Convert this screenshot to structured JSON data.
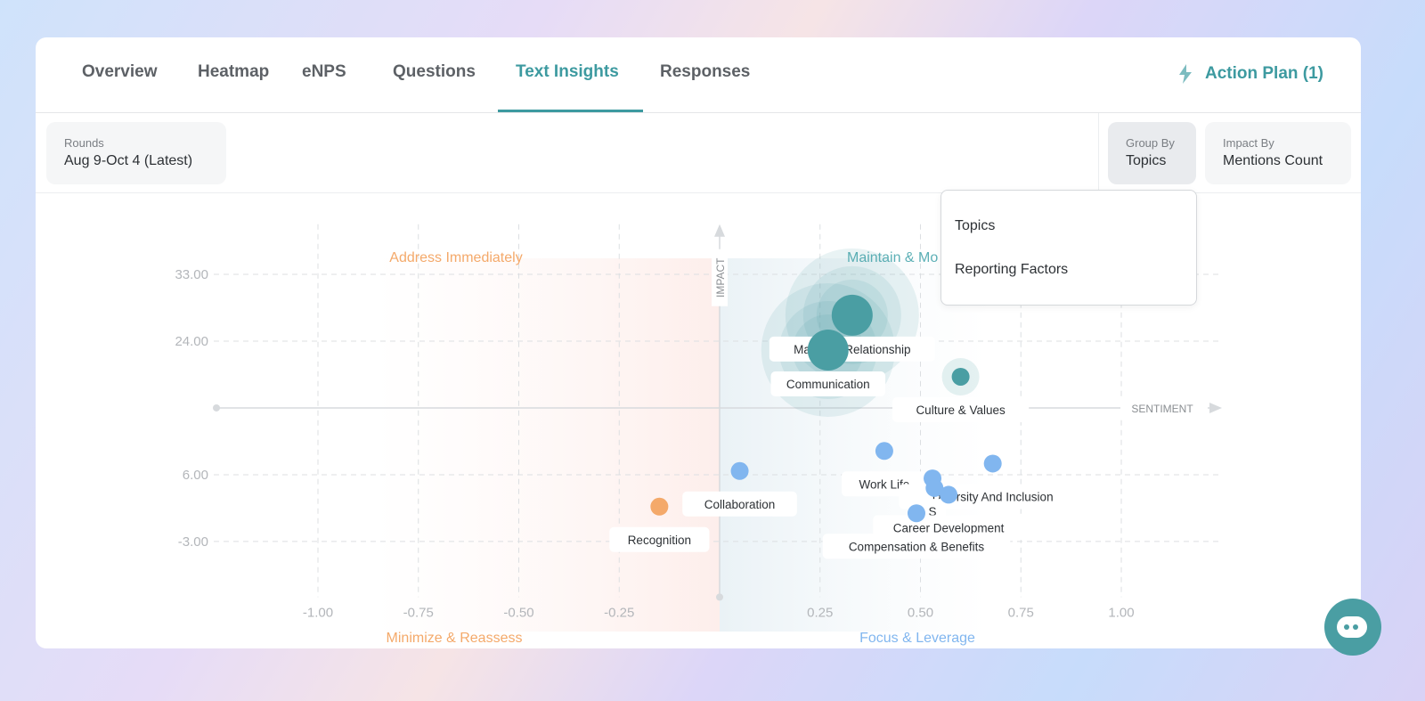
{
  "tabs": [
    {
      "label": "Overview"
    },
    {
      "label": "Heatmap"
    },
    {
      "label": "eNPS"
    },
    {
      "label": "Questions"
    },
    {
      "label": "Text Insights",
      "active": true
    },
    {
      "label": "Responses"
    }
  ],
  "action_plan": {
    "label": "Action Plan (1)",
    "icon": "lightning-icon"
  },
  "filters": {
    "rounds": {
      "label": "Rounds",
      "value": "Aug 9-Oct 4 (Latest)"
    },
    "group_by": {
      "label": "Group By",
      "value": "Topics"
    },
    "impact_by": {
      "label": "Impact By",
      "value": "Mentions Count"
    }
  },
  "dropdown": {
    "options": [
      "Topics",
      "Reporting Factors"
    ]
  },
  "colors": {
    "accent": "#3d9aa0",
    "positive": "#81b6ef",
    "negative": "#f4a96a",
    "core": "#4a9ea3"
  },
  "chart_data": {
    "type": "scatter",
    "xlabel": "SENTIMENT",
    "ylabel": "IMPACT",
    "xlim": [
      -1.1,
      1.25
    ],
    "ylim": [
      -10,
      40
    ],
    "x_ticks": [
      "-1.00",
      "-0.75",
      "-0.50",
      "-0.25",
      "0.25",
      "0.50",
      "0.75",
      "1.00"
    ],
    "x_tick_values": [
      -1,
      -0.75,
      -0.5,
      -0.25,
      0.25,
      0.5,
      0.75,
      1
    ],
    "y_ticks": [
      "33.00",
      "24.00",
      "6.00",
      "-3.00"
    ],
    "y_tick_values": [
      33,
      24,
      6,
      -3
    ],
    "quadrants": {
      "top_left": "Address Immediately",
      "top_right": "Maintain & Mo",
      "bottom_left": "Minimize & Reassess",
      "bottom_right": "Focus & Leverage"
    },
    "points": [
      {
        "name": "Manager Relationship",
        "x": 0.33,
        "y": 27.5,
        "type": "core"
      },
      {
        "name": "Communication",
        "x": 0.27,
        "y": 22.8,
        "type": "core"
      },
      {
        "name": "Culture & Values",
        "x": 0.6,
        "y": 19.2,
        "type": "core-small"
      },
      {
        "name": "Work Life",
        "x": 0.41,
        "y": 9.2,
        "type": "positive"
      },
      {
        "name": "Diversity And Inclusion",
        "x": 0.68,
        "y": 7.5,
        "type": "positive"
      },
      {
        "name": "Collaboration",
        "x": 0.05,
        "y": 6.5,
        "type": "positive"
      },
      {
        "name": "S",
        "x": 0.53,
        "y": 5.5,
        "type": "positive"
      },
      {
        "name": "",
        "x": 0.535,
        "y": 4.2,
        "type": "positive"
      },
      {
        "name": "Career Development",
        "x": 0.57,
        "y": 3.3,
        "type": "positive"
      },
      {
        "name": "Compensation & Benefits",
        "x": 0.49,
        "y": 0.8,
        "type": "positive"
      },
      {
        "name": "Recognition",
        "x": -0.15,
        "y": 1.7,
        "type": "negative"
      }
    ]
  }
}
